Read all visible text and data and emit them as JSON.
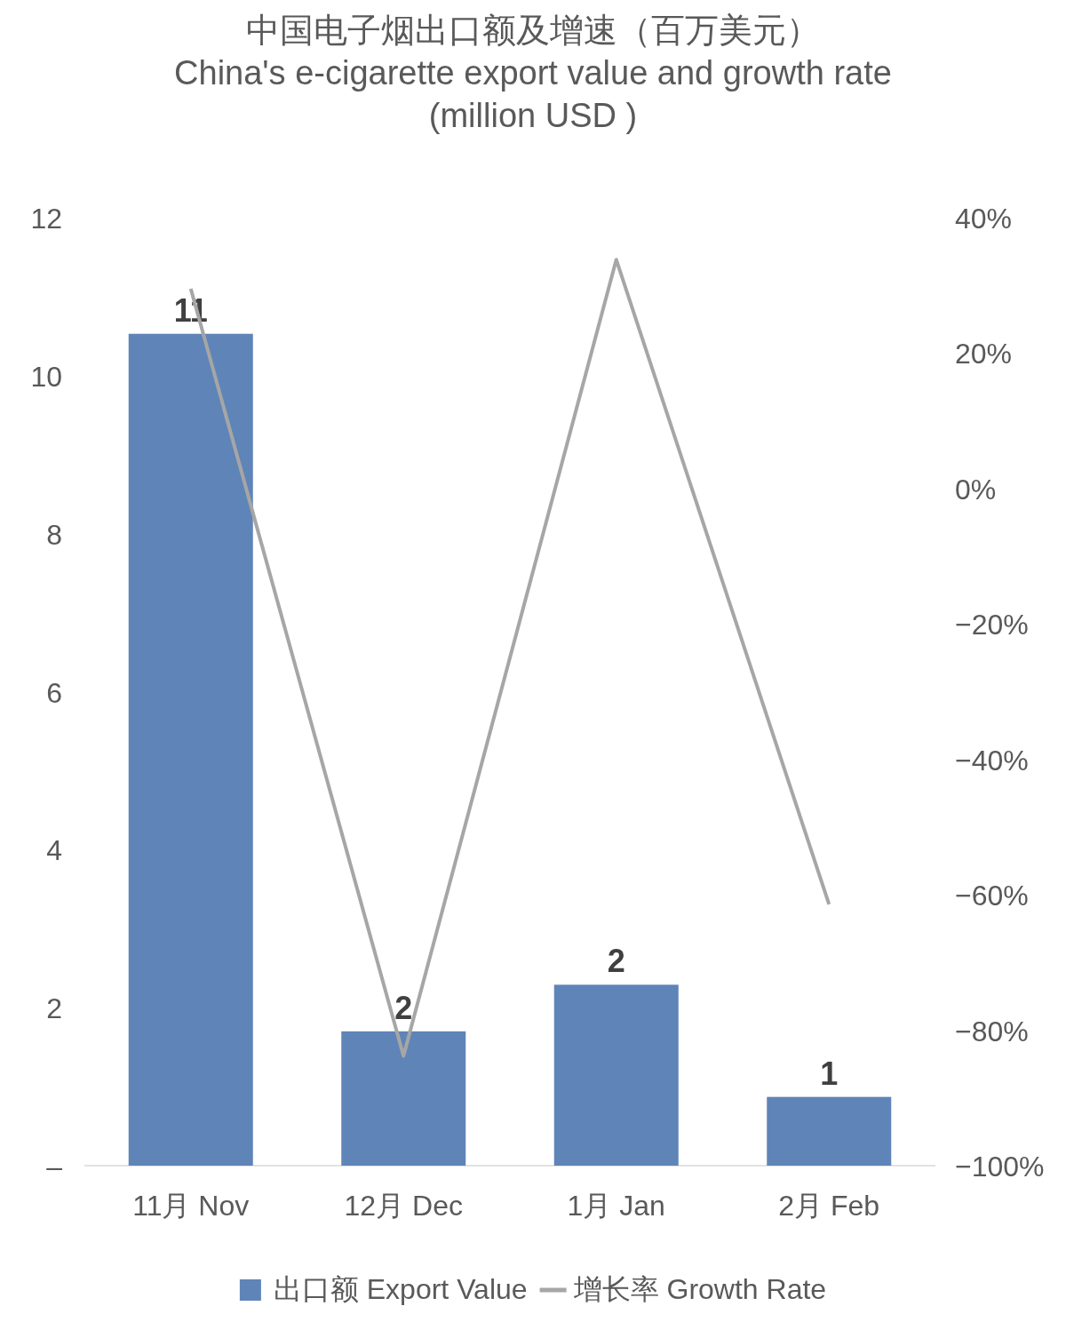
{
  "chart_data": {
    "type": "bar",
    "title": "中国电子烟出口额及增速（百万美元）",
    "subtitle": "China's e-cigarette export value and growth rate (million USD )",
    "categories": [
      "11月 Nov",
      "12月 Dec",
      "1月 Jan",
      "2月 Feb"
    ],
    "series": [
      {
        "name": "出口额 Export Value",
        "color": "#5f84b8",
        "values": [
          10.53,
          1.7,
          2.29,
          0.87
        ],
        "value_labels": [
          "11",
          "2",
          "2",
          "1"
        ]
      },
      {
        "name": "增长率 Growth Rate",
        "type": "line",
        "axis": "y2",
        "color": "#a6a6a6",
        "marker": "none",
        "values": [
          29.5,
          -83.8,
          33.8,
          -61.4
        ]
      }
    ],
    "ylim": [
      0,
      12
    ],
    "yticks": [
      {
        "value": 0,
        "label": "–"
      },
      2,
      4,
      6,
      8,
      10,
      12
    ],
    "y2lim": [
      -100,
      40
    ],
    "y2ticks": [
      {
        "value": -100,
        "label": "−100%"
      },
      {
        "value": -80,
        "label": "−80%"
      },
      {
        "value": -60,
        "label": "−60%"
      },
      {
        "value": -40,
        "label": "−40%"
      },
      {
        "value": -20,
        "label": "−20%"
      },
      {
        "value": 0,
        "label": "0%"
      },
      {
        "value": 20,
        "label": "20%"
      },
      {
        "value": 40,
        "label": "40%"
      }
    ],
    "grid": false,
    "legend": "bottom"
  }
}
